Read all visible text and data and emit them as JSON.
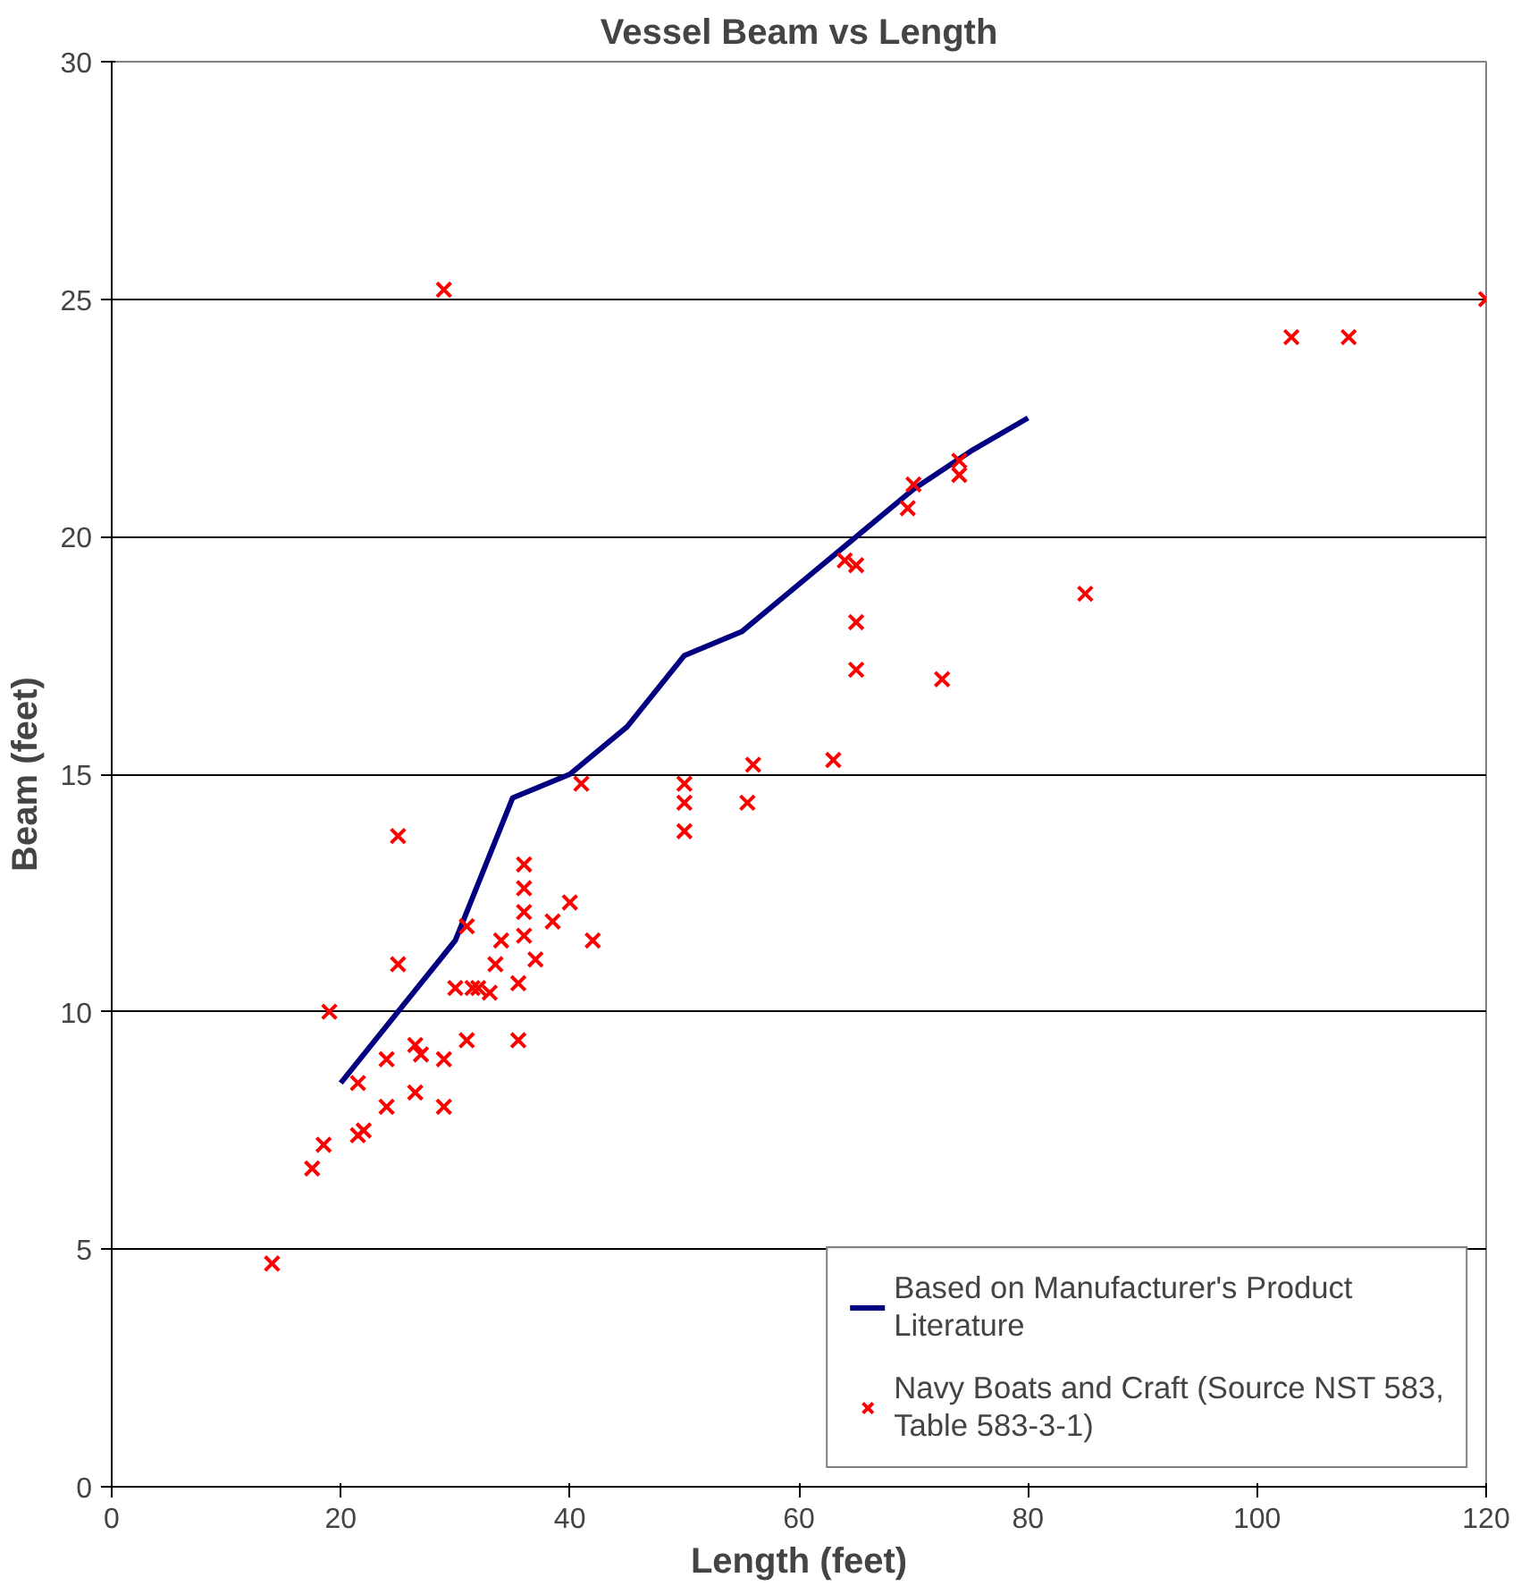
{
  "chart_data": {
    "type": "line",
    "title": "Vessel Beam vs Length",
    "xlabel": "Length (feet)",
    "ylabel": "Beam (feet)",
    "xlim": [
      0,
      120
    ],
    "xticks": [
      0,
      20,
      40,
      60,
      80,
      100,
      120
    ],
    "ylim": [
      0,
      30
    ],
    "yticks": [
      0,
      5,
      10,
      15,
      20,
      25,
      30
    ],
    "grid": "y",
    "legend": "bottom right",
    "series": [
      {
        "name": "Based on Manufacturer's Product Literature",
        "color": "#000080",
        "marker": "none",
        "line_style": "solid",
        "x": [
          20,
          25,
          30,
          35,
          40,
          45,
          50,
          55,
          60,
          65,
          70,
          75,
          80
        ],
        "values": [
          8.5,
          10,
          11.5,
          14.5,
          15,
          16,
          17.5,
          18,
          19,
          20,
          21,
          21.8,
          22.5
        ]
      },
      {
        "name": "Navy Boats and Craft (Source NST 583, Table 583-3-1)",
        "type": "scatter",
        "color": "#ff0000",
        "marker": "cross",
        "x": [
          14,
          17.5,
          18.5,
          19,
          21.5,
          22,
          21.5,
          24,
          24,
          25,
          25,
          26.5,
          26.5,
          27,
          29,
          29,
          29,
          30,
          31,
          31,
          31.5,
          32,
          33,
          33.5,
          34,
          35.5,
          35.5,
          36,
          36,
          36,
          36,
          37,
          38.5,
          40,
          41,
          42,
          50,
          50,
          50,
          55.5,
          56,
          63,
          64,
          65,
          65,
          65,
          69.5,
          70,
          72.5,
          74,
          74,
          85,
          103,
          108,
          120
        ],
        "values": [
          4.7,
          6.7,
          7.2,
          10,
          7.4,
          7.5,
          8.5,
          8,
          9,
          11,
          13.7,
          8.3,
          9.3,
          9.1,
          25.2,
          8,
          9,
          10.5,
          9.4,
          11.8,
          10.5,
          10.5,
          10.4,
          11,
          11.5,
          9.4,
          10.6,
          11.6,
          12.1,
          12.6,
          13.1,
          11.1,
          11.9,
          12.3,
          14.8,
          11.5,
          13.8,
          14.4,
          14.8,
          14.4,
          15.2,
          15.3,
          19.5,
          19.4,
          18.2,
          17.2,
          20.6,
          21.1,
          17,
          21.3,
          21.6,
          18.8,
          24.2,
          24.2,
          25
        ]
      }
    ]
  }
}
